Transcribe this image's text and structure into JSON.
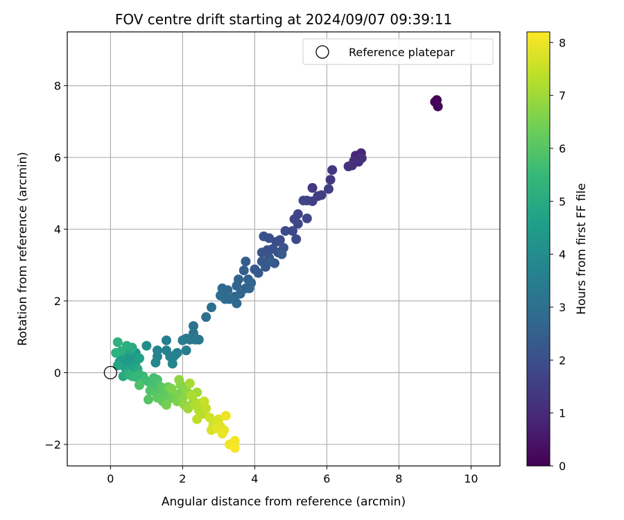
{
  "chart_data": {
    "type": "scatter",
    "title": "FOV centre drift starting at 2024/09/07 09:39:11",
    "xlabel": "Angular distance from reference (arcmin)",
    "ylabel": "Rotation from reference (arcmin)",
    "xlim": [
      -1.2,
      10.8
    ],
    "ylim": [
      -2.6,
      9.5
    ],
    "xticks": [
      "0",
      "2",
      "4",
      "6",
      "8",
      "10"
    ],
    "yticks": [
      "−2",
      "0",
      "2",
      "4",
      "6",
      "8"
    ],
    "grid": true,
    "legend": {
      "placement": "top-right",
      "label": "Reference platepar"
    },
    "reference_point": {
      "x": 0,
      "y": 0
    },
    "colorbar": {
      "label": "Hours from first FF file",
      "range": [
        0,
        8.2
      ],
      "ticks": [
        "0",
        "1",
        "2",
        "3",
        "4",
        "5",
        "6",
        "7",
        "8"
      ],
      "colormap": "viridis"
    },
    "colormap_stops": [
      "#440154",
      "#482878",
      "#3e4989",
      "#31688e",
      "#26828e",
      "#1f9e89",
      "#35b779",
      "#6ece58",
      "#b5de2b",
      "#fde725"
    ],
    "series": [
      {
        "points": [
          [
            9.05,
            7.6,
            0.05
          ],
          [
            9.0,
            7.55,
            0.1
          ],
          [
            9.08,
            7.42,
            0.15
          ],
          [
            6.95,
            6.12,
            0.9
          ],
          [
            6.8,
            6.05,
            0.95
          ],
          [
            6.88,
            5.88,
            1.0
          ],
          [
            6.7,
            5.78,
            1.05
          ],
          [
            6.75,
            5.9,
            1.1
          ],
          [
            6.97,
            5.98,
            1.12
          ],
          [
            6.6,
            5.75,
            1.15
          ],
          [
            6.15,
            5.65,
            1.3
          ],
          [
            6.1,
            5.38,
            1.35
          ],
          [
            5.6,
            5.15,
            1.4
          ],
          [
            5.75,
            4.92,
            1.45
          ],
          [
            5.85,
            4.95,
            1.5
          ],
          [
            6.05,
            5.12,
            1.55
          ],
          [
            5.6,
            4.78,
            1.6
          ],
          [
            5.45,
            4.8,
            1.62
          ],
          [
            5.35,
            4.8,
            1.65
          ],
          [
            5.2,
            4.42,
            1.7
          ],
          [
            5.1,
            4.28,
            1.72
          ],
          [
            5.45,
            4.3,
            1.75
          ],
          [
            5.2,
            4.15,
            1.8
          ],
          [
            5.05,
            3.95,
            1.82
          ],
          [
            5.15,
            3.72,
            1.85
          ],
          [
            4.85,
            3.95,
            1.88
          ],
          [
            4.7,
            3.7,
            1.9
          ],
          [
            4.6,
            3.65,
            1.95
          ],
          [
            4.4,
            3.75,
            2.0
          ],
          [
            4.25,
            3.8,
            2.05
          ],
          [
            4.5,
            3.45,
            2.08
          ],
          [
            4.35,
            3.42,
            2.1
          ],
          [
            4.8,
            3.48,
            2.12
          ],
          [
            4.65,
            3.35,
            2.15
          ],
          [
            4.2,
            3.35,
            2.18
          ],
          [
            4.4,
            3.2,
            2.2
          ],
          [
            4.55,
            3.05,
            2.22
          ],
          [
            4.3,
            2.95,
            2.25
          ],
          [
            4.2,
            3.1,
            2.28
          ],
          [
            4.0,
            2.88,
            2.3
          ],
          [
            4.1,
            2.78,
            2.32
          ],
          [
            4.75,
            3.3,
            2.35
          ],
          [
            4.45,
            3.1,
            2.38
          ],
          [
            3.75,
            3.1,
            2.4
          ],
          [
            3.7,
            2.85,
            2.45
          ],
          [
            3.82,
            2.6,
            2.5
          ],
          [
            3.75,
            2.35,
            2.55
          ],
          [
            3.55,
            2.6,
            2.6
          ],
          [
            3.5,
            2.42,
            2.62
          ],
          [
            3.6,
            2.2,
            2.65
          ],
          [
            3.85,
            2.35,
            2.68
          ],
          [
            3.9,
            2.5,
            2.7
          ],
          [
            3.45,
            2.12,
            2.72
          ],
          [
            3.5,
            1.93,
            2.75
          ],
          [
            3.1,
            2.35,
            2.8
          ],
          [
            3.25,
            2.3,
            2.82
          ],
          [
            3.15,
            2.2,
            2.85
          ],
          [
            3.05,
            2.15,
            2.88
          ],
          [
            3.3,
            2.05,
            2.9
          ],
          [
            3.18,
            2.05,
            2.92
          ],
          [
            2.8,
            1.82,
            2.95
          ],
          [
            2.65,
            1.55,
            3.0
          ],
          [
            2.3,
            1.3,
            3.1
          ],
          [
            2.3,
            1.1,
            3.15
          ],
          [
            2.45,
            0.92,
            3.2
          ],
          [
            2.1,
            0.95,
            3.25
          ],
          [
            2.2,
            0.92,
            3.3
          ],
          [
            2.35,
            0.92,
            3.35
          ],
          [
            2.0,
            0.9,
            3.4
          ],
          [
            2.1,
            0.62,
            3.45
          ],
          [
            1.55,
            0.9,
            3.5
          ],
          [
            1.8,
            0.5,
            3.55
          ],
          [
            1.85,
            0.55,
            3.58
          ],
          [
            1.65,
            0.45,
            3.6
          ],
          [
            1.55,
            0.62,
            3.62
          ],
          [
            1.3,
            0.62,
            3.65
          ],
          [
            1.3,
            0.45,
            3.7
          ],
          [
            1.75,
            0.45,
            3.72
          ],
          [
            1.72,
            0.25,
            3.75
          ],
          [
            1.25,
            0.28,
            3.8
          ],
          [
            1.0,
            0.75,
            4.0
          ],
          [
            0.35,
            0.4,
            4.1
          ],
          [
            0.45,
            0.55,
            4.2
          ],
          [
            0.55,
            0.45,
            4.25
          ],
          [
            0.7,
            0.55,
            4.3
          ],
          [
            0.6,
            0.35,
            4.35
          ],
          [
            0.25,
            0.3,
            4.4
          ],
          [
            0.5,
            0.25,
            4.45
          ],
          [
            0.7,
            0.3,
            4.5
          ],
          [
            0.4,
            0.15,
            4.55
          ],
          [
            0.3,
            0.45,
            4.6
          ],
          [
            0.65,
            0.15,
            4.65
          ],
          [
            0.8,
            0.4,
            4.7
          ],
          [
            0.55,
            0.6,
            4.75
          ],
          [
            0.45,
            0.05,
            4.8
          ],
          [
            0.2,
            0.2,
            4.85
          ],
          [
            0.75,
            0.1,
            4.9
          ],
          [
            0.35,
            -0.1,
            4.95
          ],
          [
            0.6,
            0.7,
            5.0
          ],
          [
            0.45,
            0.75,
            5.1
          ],
          [
            0.3,
            0.6,
            5.15
          ],
          [
            0.15,
            0.55,
            5.2
          ],
          [
            0.2,
            0.85,
            5.25
          ],
          [
            0.5,
            -0.05,
            5.3
          ],
          [
            0.6,
            -0.1,
            5.35
          ],
          [
            0.8,
            -0.05,
            5.4
          ],
          [
            0.7,
            -0.12,
            5.45
          ],
          [
            0.9,
            -0.1,
            5.5
          ],
          [
            0.95,
            -0.2,
            5.6
          ],
          [
            1.05,
            -0.25,
            5.65
          ],
          [
            1.2,
            -0.15,
            5.7
          ],
          [
            1.15,
            -0.35,
            5.75
          ],
          [
            1.3,
            -0.2,
            5.8
          ],
          [
            0.8,
            -0.35,
            5.85
          ],
          [
            1.1,
            -0.5,
            5.9
          ],
          [
            1.25,
            -0.55,
            5.95
          ],
          [
            1.05,
            -0.75,
            6.0
          ],
          [
            1.4,
            -0.4,
            6.05
          ],
          [
            1.5,
            -0.55,
            6.1
          ],
          [
            1.3,
            -0.7,
            6.15
          ],
          [
            1.45,
            -0.8,
            6.2
          ],
          [
            1.6,
            -0.75,
            6.25
          ],
          [
            1.7,
            -0.55,
            6.3
          ],
          [
            1.6,
            -0.4,
            6.35
          ],
          [
            1.75,
            -0.7,
            6.4
          ],
          [
            1.55,
            -0.9,
            6.45
          ],
          [
            1.9,
            -0.6,
            6.5
          ],
          [
            1.85,
            -0.8,
            6.55
          ],
          [
            1.7,
            -0.45,
            6.6
          ],
          [
            1.95,
            -0.35,
            6.65
          ],
          [
            2.0,
            -0.7,
            6.7
          ],
          [
            2.1,
            -0.5,
            6.75
          ],
          [
            1.9,
            -0.2,
            6.8
          ],
          [
            2.05,
            -0.9,
            6.85
          ],
          [
            2.2,
            -0.6,
            6.9
          ],
          [
            2.3,
            -0.8,
            6.95
          ],
          [
            2.15,
            -1.0,
            7.0
          ],
          [
            2.4,
            -0.55,
            7.05
          ],
          [
            2.2,
            -0.3,
            7.1
          ],
          [
            2.25,
            -0.65,
            7.15
          ],
          [
            2.35,
            -0.9,
            7.2
          ],
          [
            2.45,
            -1.05,
            7.25
          ],
          [
            2.5,
            -0.85,
            7.3
          ],
          [
            2.55,
            -1.15,
            7.35
          ],
          [
            2.4,
            -1.3,
            7.4
          ],
          [
            2.65,
            -1.0,
            7.45
          ],
          [
            2.6,
            -0.8,
            7.5
          ],
          [
            2.75,
            -1.25,
            7.6
          ],
          [
            2.85,
            -1.45,
            7.65
          ],
          [
            2.8,
            -1.6,
            7.7
          ],
          [
            3.0,
            -1.3,
            7.75
          ],
          [
            3.05,
            -1.5,
            7.8
          ],
          [
            2.95,
            -1.55,
            7.85
          ],
          [
            3.15,
            -1.6,
            7.9
          ],
          [
            3.1,
            -1.7,
            7.95
          ],
          [
            3.2,
            -1.2,
            8.0
          ],
          [
            3.3,
            -2.0,
            8.05
          ],
          [
            3.45,
            -1.9,
            8.1
          ],
          [
            3.45,
            -2.1,
            8.15
          ]
        ]
      }
    ]
  }
}
